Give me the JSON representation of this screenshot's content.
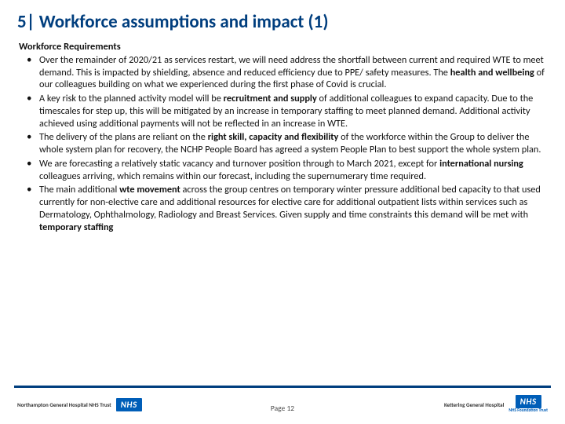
{
  "title": "5| Workforce assumptions and impact (1)",
  "subheading": "Workforce Requirements",
  "bullets": {
    "b0": {
      "pre": "Over the remainder of 2020/21 as services restart, we will need address the shortfall between current and required WTE to meet demand. This is impacted by shielding, absence and reduced efficiency due to PPE/ safety measures. The ",
      "bold": "health and wellbeing",
      "post": " of our colleagues building on what we experienced during the first phase of Covid is crucial."
    },
    "b1": {
      "pre": "A key risk to the planned activity model will be ",
      "bold": "recruitment and supply",
      "post": " of additional colleagues to expand capacity.  Due to the timescales for step up, this will be mitigated by an increase in temporary staffing to meet planned demand. Additional activity achieved using additional payments will not be reflected in an increase in WTE."
    },
    "b2": {
      "pre": "The delivery of the plans are reliant on the ",
      "bold": "right skill, capacity and flexibility",
      "post": " of the workforce within the Group to deliver the whole system plan for recovery, the NCHP People Board has agreed a system People Plan to best support the whole system plan."
    },
    "b3": {
      "pre": "We are forecasting a relatively static vacancy and turnover position through to March 2021, except for ",
      "bold": "international nursing",
      "post": " colleagues arriving, which remains within our forecast, including the supernumerary time required."
    },
    "b4": {
      "pre1": "The main additional ",
      "bold1": "wte movement",
      "mid": " across the group centres on temporary winter pressure additional bed capacity to that used currently for non-elective care and additional resources for elective care for additional outpatient lists within services such as Dermatology, Ophthalmology, Radiology and Breast Services. Given supply and time constraints this demand will be met with ",
      "bold2": "temporary staffing",
      "post": ""
    }
  },
  "page_label": "Page 12",
  "nhs": {
    "text": "NHS",
    "sub": "NHS Foundation Trust"
  },
  "trust_left": "Northampton General Hospital\nNHS Trust",
  "trust_right": "Kettering General Hospital",
  "colors": {
    "brand": "#003e7e",
    "nhs": "#005eb8",
    "text": "#111111",
    "bg": "#ffffff"
  }
}
